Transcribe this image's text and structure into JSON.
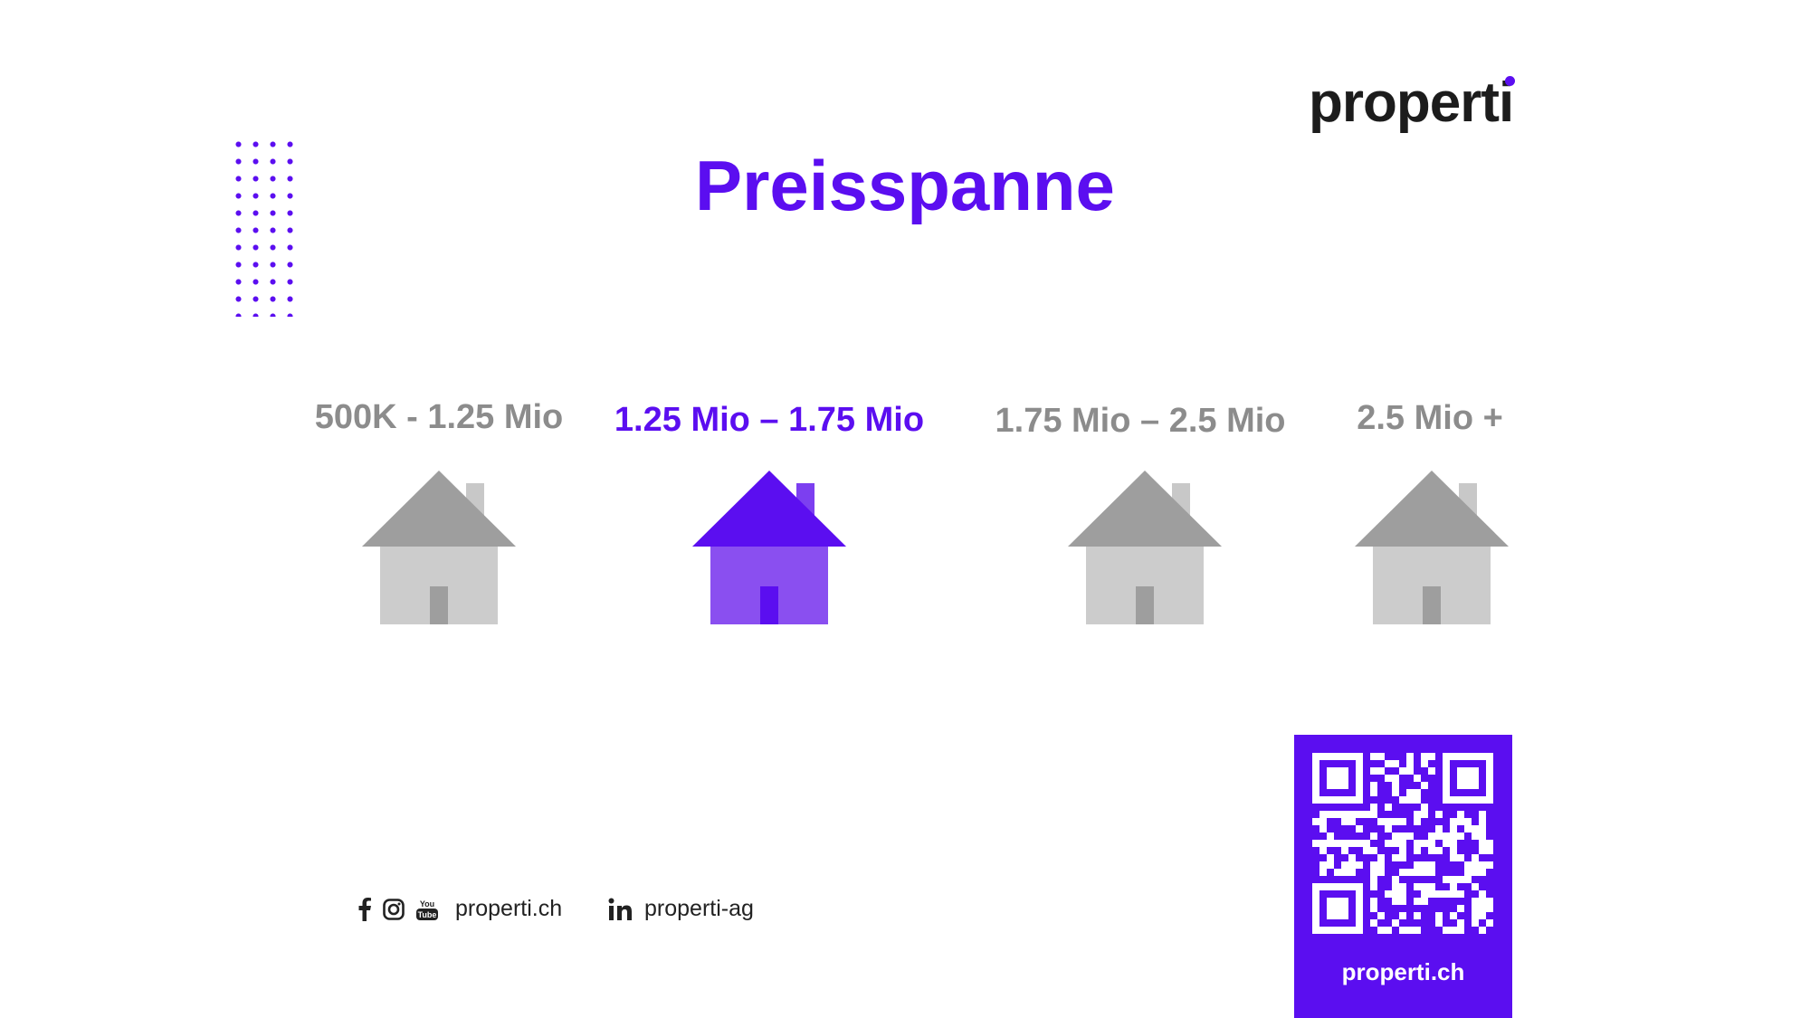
{
  "brand": {
    "logo_text_before": "propert",
    "logo_text_i": "i",
    "accent_color": "#5b0ef0"
  },
  "title": "Preisspanne",
  "price_ranges": [
    {
      "label": "500K - 1.25 Mio",
      "active": false
    },
    {
      "label": "1.25 Mio – 1.75 Mio",
      "active": true
    },
    {
      "label": "1.75 Mio – 2.5 Mio",
      "active": false
    },
    {
      "label": "2.5 Mio +",
      "active": false
    }
  ],
  "colors": {
    "active_roof": "#5b0ef0",
    "active_body": "#8a4ff0",
    "active_door": "#5b0ef0",
    "inactive_roof": "#9e9e9e",
    "inactive_body": "#cccccc",
    "inactive_door": "#9e9e9e"
  },
  "footer": {
    "social_icons": [
      "facebook-icon",
      "instagram-icon",
      "youtube-icon"
    ],
    "website": "properti.ch",
    "linkedin_icon": "linkedin-icon",
    "linkedin": "properti-ag"
  },
  "qr": {
    "label": "properti.ch"
  }
}
